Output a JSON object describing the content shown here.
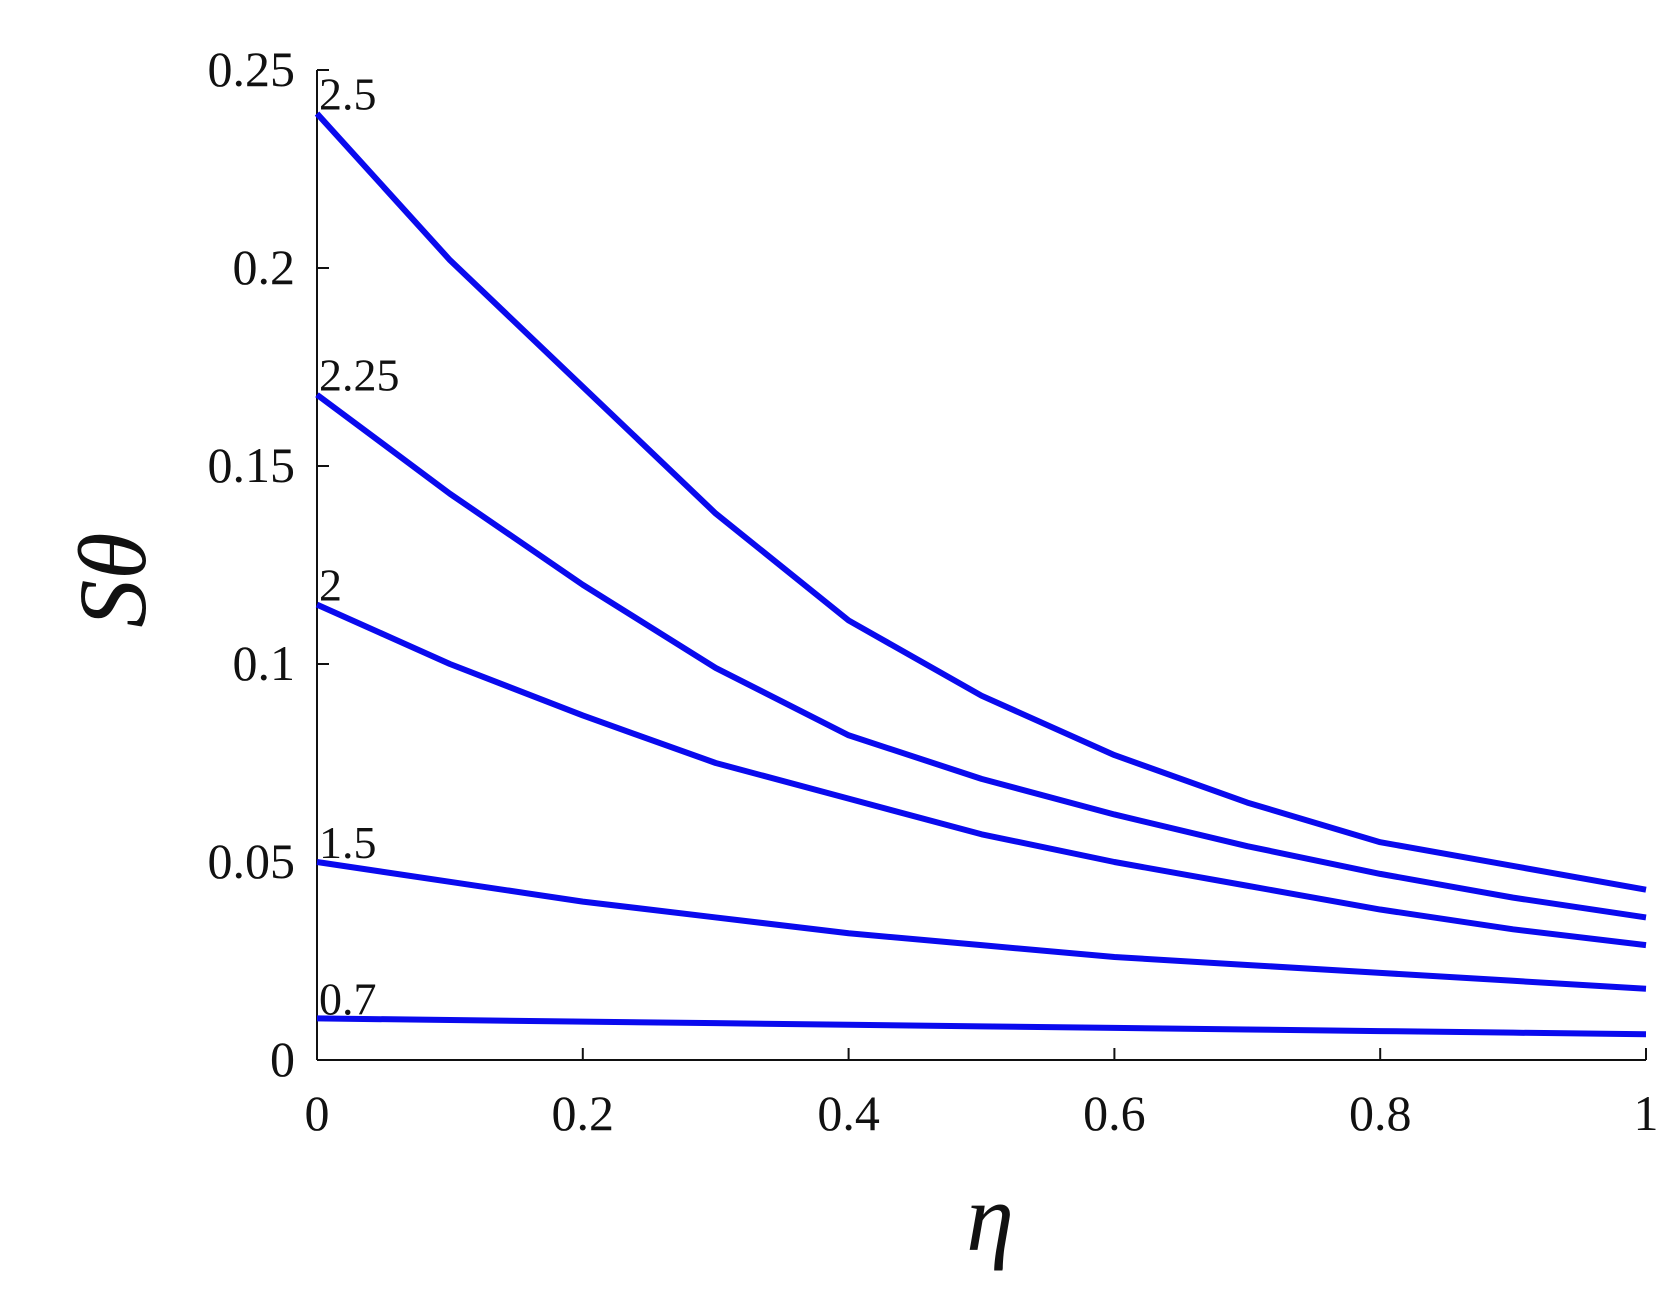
{
  "chart_data": {
    "type": "line",
    "xlabel": "η",
    "ylabel": "Sθ",
    "x": [
      0,
      0.1,
      0.2,
      0.3,
      0.4,
      0.5,
      0.6,
      0.7,
      0.8,
      0.9,
      1
    ],
    "series": [
      {
        "name": "2.5",
        "color": "#0a0aee",
        "values": [
          0.239,
          0.202,
          0.17,
          0.138,
          0.111,
          0.092,
          0.077,
          0.065,
          0.055,
          0.049,
          0.043
        ]
      },
      {
        "name": "2.25",
        "color": "#0a0aee",
        "values": [
          0.168,
          0.143,
          0.12,
          0.099,
          0.082,
          0.071,
          0.062,
          0.054,
          0.047,
          0.041,
          0.036
        ]
      },
      {
        "name": "2",
        "color": "#0a0aee",
        "values": [
          0.115,
          0.1,
          0.087,
          0.075,
          0.066,
          0.057,
          0.05,
          0.044,
          0.038,
          0.033,
          0.029
        ]
      },
      {
        "name": "1.5",
        "color": "#0a0aee",
        "values": [
          0.05,
          0.045,
          0.04,
          0.036,
          0.032,
          0.029,
          0.026,
          0.024,
          0.022,
          0.02,
          0.018
        ]
      },
      {
        "name": "0.7",
        "color": "#0a0aee",
        "values": [
          0.0105,
          0.0101,
          0.0097,
          0.0093,
          0.0089,
          0.0085,
          0.0081,
          0.0077,
          0.0073,
          0.0069,
          0.0065
        ]
      }
    ],
    "xlim": [
      0,
      1
    ],
    "xticks": [
      0,
      0.2,
      0.4,
      0.6,
      0.8,
      1
    ],
    "ylim": [
      0,
      0.25
    ],
    "yticks": [
      0,
      0.05,
      0.1,
      0.15,
      0.2,
      0.25
    ],
    "grid": false
  }
}
